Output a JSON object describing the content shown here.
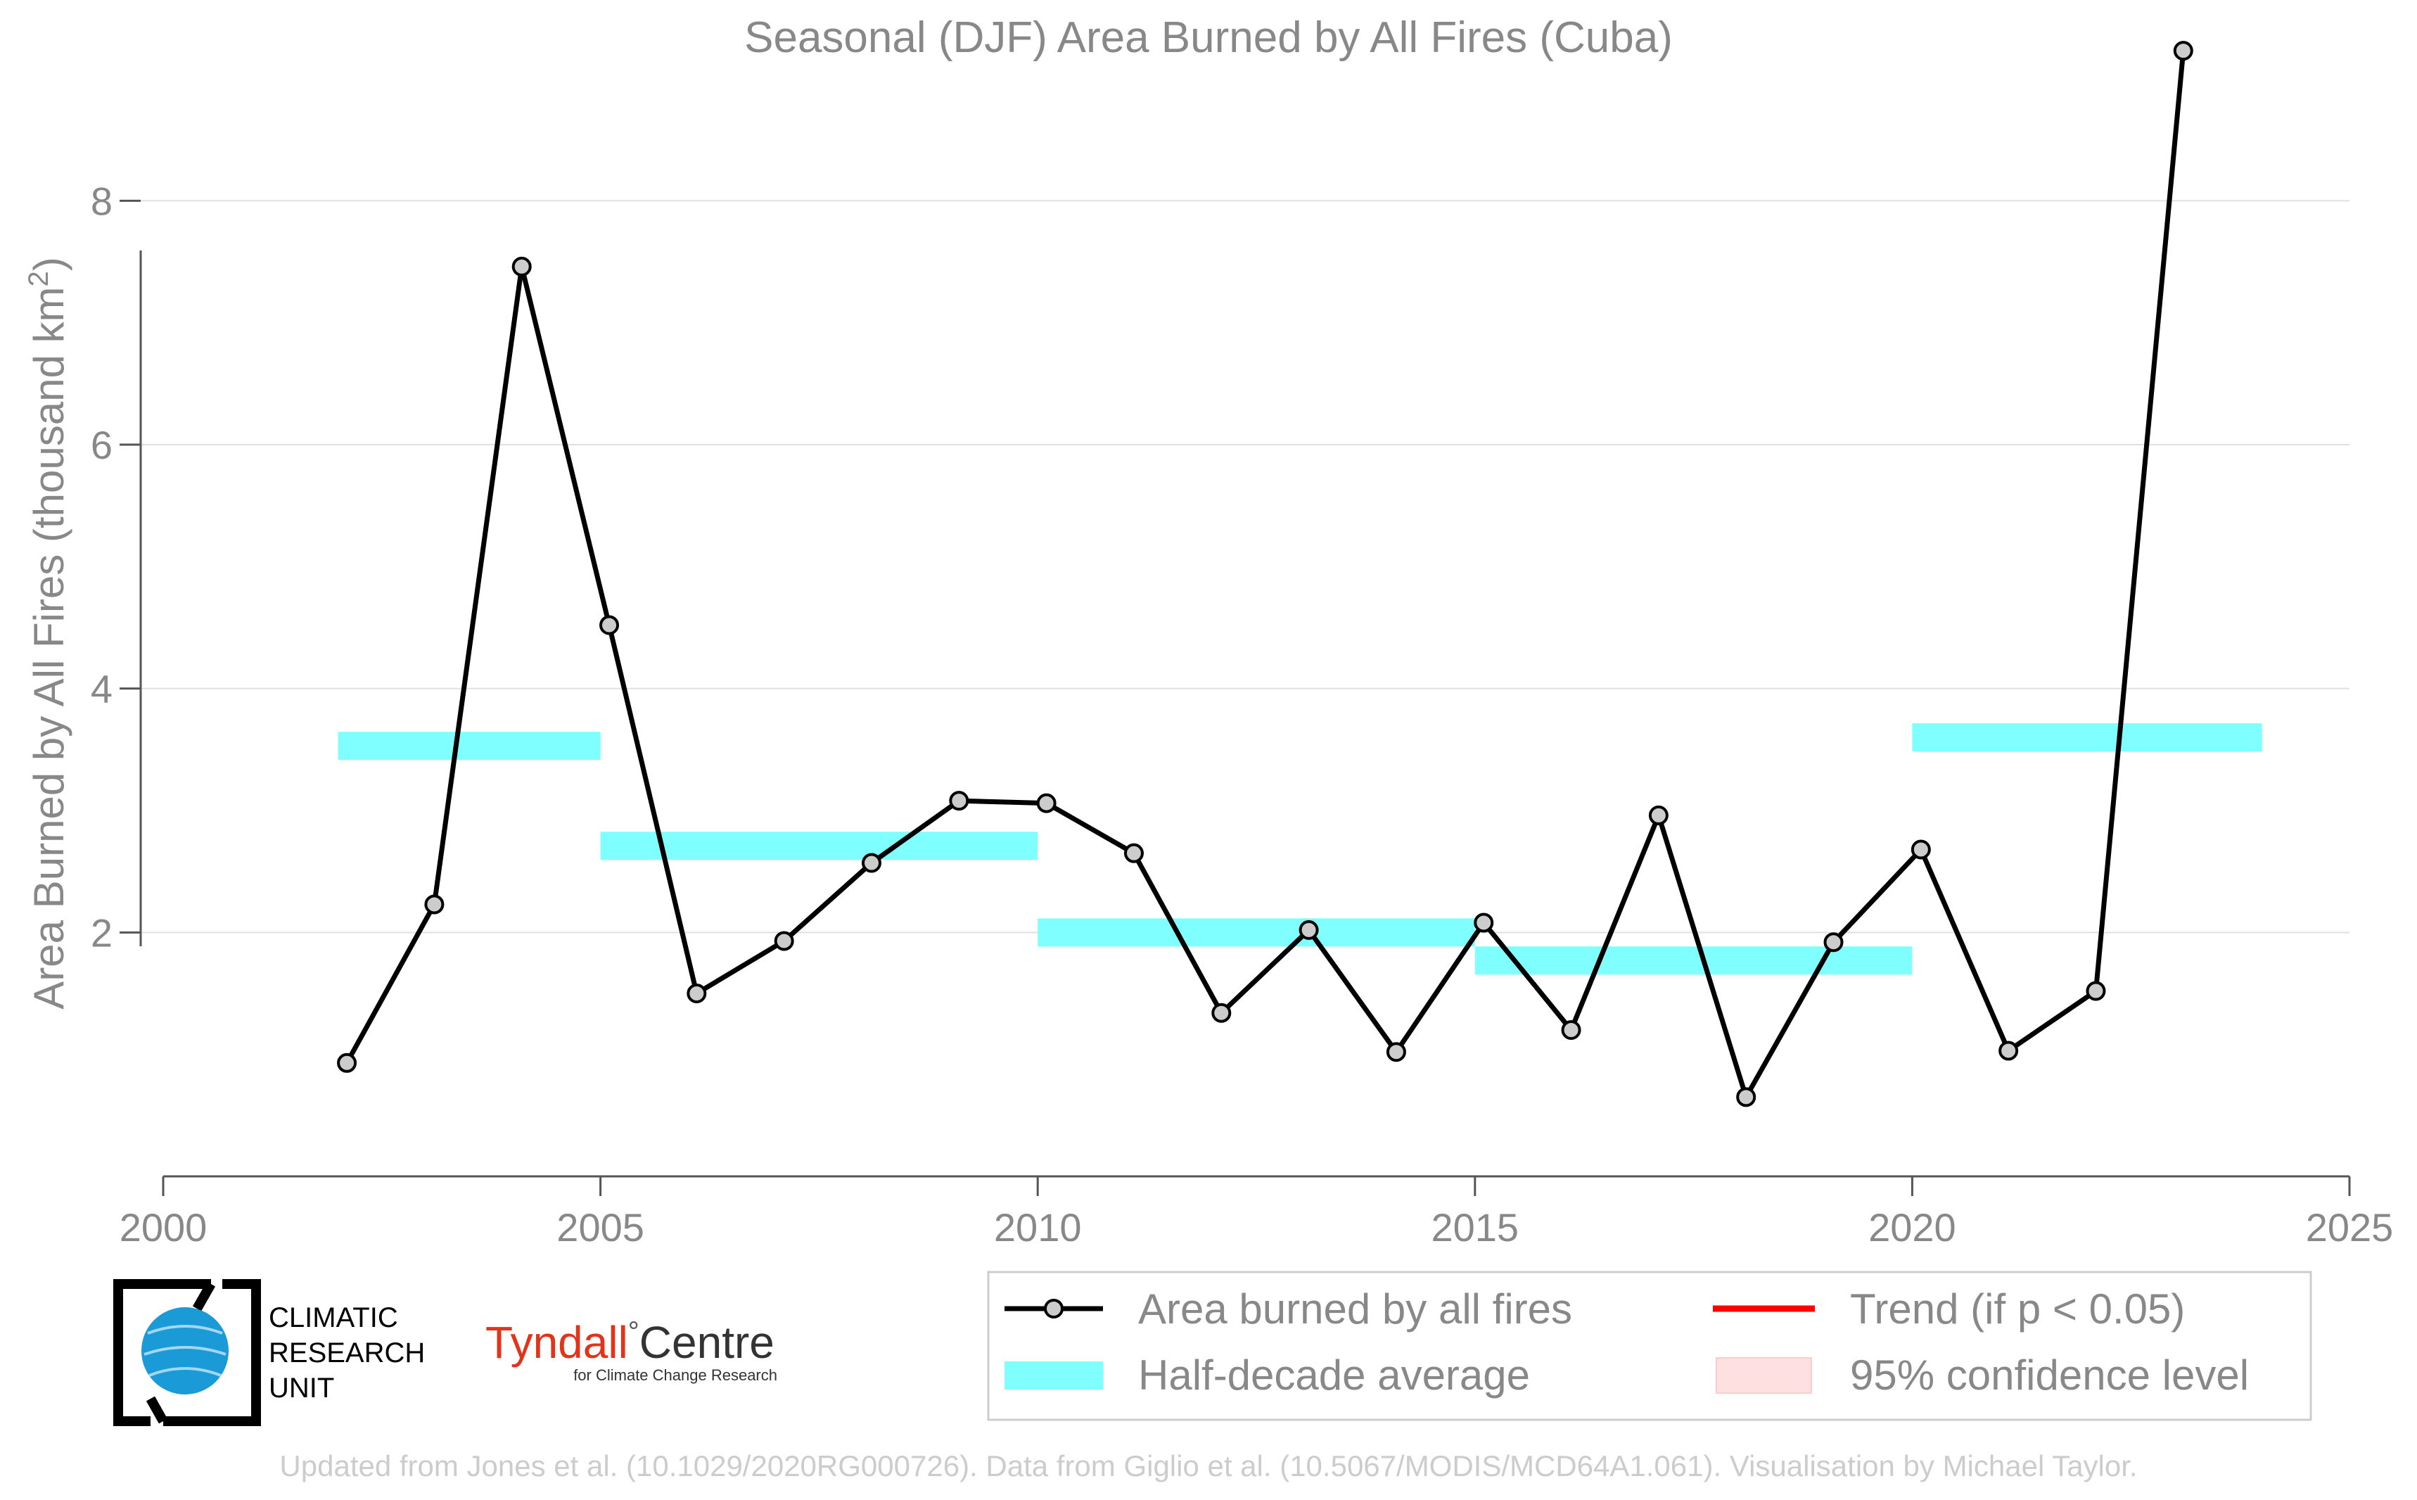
{
  "chart_data": {
    "type": "line",
    "title": "Seasonal (DJF) Area Burned by All Fires (Cuba)",
    "ylabel": "Area Burned by All Fires (thousand km",
    "ylabel_sup": "2",
    "ylabel_close": ")",
    "xlim": [
      2000,
      2025
    ],
    "ylim": [
      0,
      9.3
    ],
    "xticks": [
      "2000",
      "2005",
      "2010",
      "2015",
      "2020",
      "2025"
    ],
    "yticks": [
      "2",
      "4",
      "6",
      "8"
    ],
    "grid": true,
    "series": [
      {
        "name": "Area burned by all fires",
        "color": "#000000",
        "x": [
          2002.1,
          2003.1,
          2004.1,
          2005.1,
          2006.1,
          2007.1,
          2008.1,
          2009.1,
          2010.1,
          2011.1,
          2012.1,
          2013.1,
          2014.1,
          2015.1,
          2016.1,
          2017.1,
          2018.1,
          2019.1,
          2020.1,
          2021.1,
          2022.1,
          2023.1
        ],
        "values": [
          0.93,
          2.23,
          7.46,
          4.52,
          1.5,
          1.93,
          2.57,
          3.08,
          3.06,
          2.65,
          1.34,
          2.02,
          1.02,
          2.08,
          1.2,
          2.96,
          0.65,
          1.92,
          2.68,
          1.03,
          1.52,
          9.23
        ]
      }
    ],
    "half_decade_averages": [
      {
        "x0": 2002,
        "x1": 2005,
        "value": 3.53
      },
      {
        "x0": 2005,
        "x1": 2010,
        "value": 2.71
      },
      {
        "x0": 2010,
        "x1": 2015,
        "value": 2.0
      },
      {
        "x0": 2015,
        "x1": 2020,
        "value": 1.77
      },
      {
        "x0": 2020,
        "x1": 2024,
        "value": 3.6
      }
    ],
    "half_decade_color": "#7fffff",
    "legend": {
      "placement": "bottom-right",
      "items": [
        {
          "label": "Area burned by all fires",
          "kind": "line-marker",
          "color": "#000000"
        },
        {
          "label": "Trend (if p < 0.05)",
          "kind": "line",
          "color": "#ff0000"
        },
        {
          "label": "Half-decade average",
          "kind": "band",
          "color": "#7fffff"
        },
        {
          "label": "95% confidence level",
          "kind": "band",
          "color": "#ffe0e0"
        }
      ]
    }
  },
  "logos": {
    "cru": [
      "CLIMATIC",
      "RESEARCH",
      "UNIT"
    ],
    "tyndall_main": "Tyndall",
    "tyndall_deg": "°",
    "tyndall_centre": "Centre",
    "tyndall_sub": "for Climate Change Research"
  },
  "footer": "Updated from Jones et al. (10.1029/2020RG000726). Data from Giglio et al. (10.5067/MODIS/MCD64A1.061). Visualisation by Michael Taylor."
}
